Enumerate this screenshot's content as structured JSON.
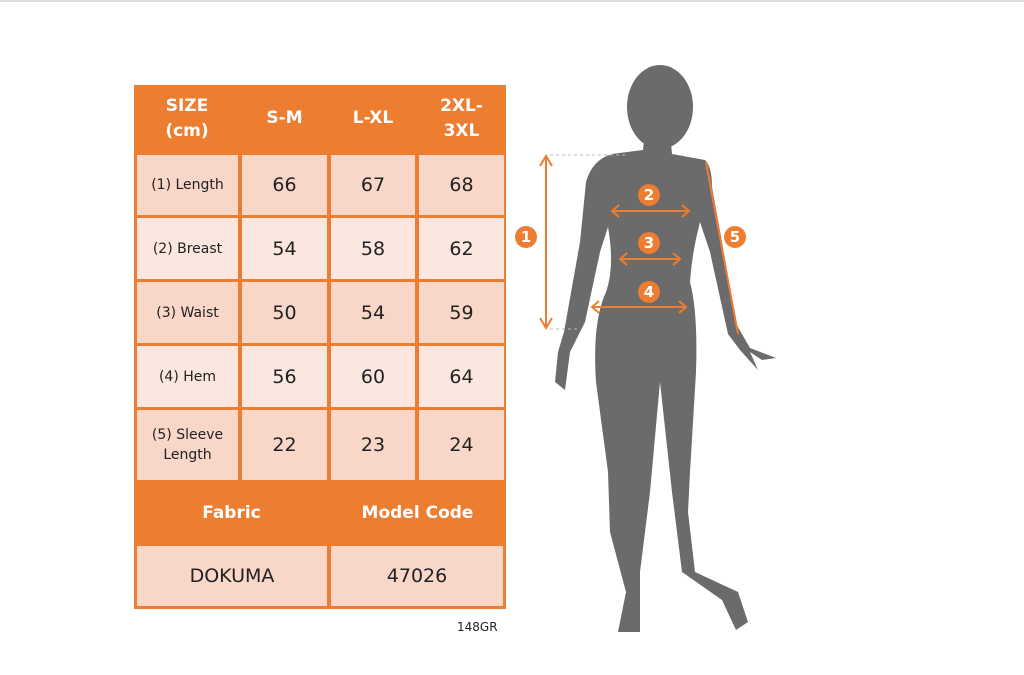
{
  "table": {
    "headers": [
      "SIZE\n(cm)",
      "S-M",
      "L-XL",
      "2XL-\n3XL"
    ],
    "rows": [
      {
        "label": "(1) Length",
        "values": [
          "66",
          "67",
          "68"
        ]
      },
      {
        "label": "(2) Breast",
        "values": [
          "54",
          "58",
          "62"
        ]
      },
      {
        "label": "(3) Waist",
        "values": [
          "50",
          "54",
          "59"
        ]
      },
      {
        "label": "(4) Hem",
        "values": [
          "56",
          "60",
          "64"
        ]
      },
      {
        "label": "(5) Sleeve Length",
        "values": [
          "22",
          "23",
          "24"
        ]
      }
    ],
    "footer_headers": [
      "Fabric",
      "Model Code"
    ],
    "footer_values": [
      "DOKUMA",
      "47026"
    ]
  },
  "code": "148GR",
  "figure": {
    "markers": [
      "1",
      "2",
      "3",
      "4",
      "5"
    ]
  },
  "colors": {
    "accent": "#ED7D31",
    "cell_dark": "#F8D6C8",
    "cell_light": "#FBE7DF",
    "silhouette": "#6b6b6b"
  }
}
